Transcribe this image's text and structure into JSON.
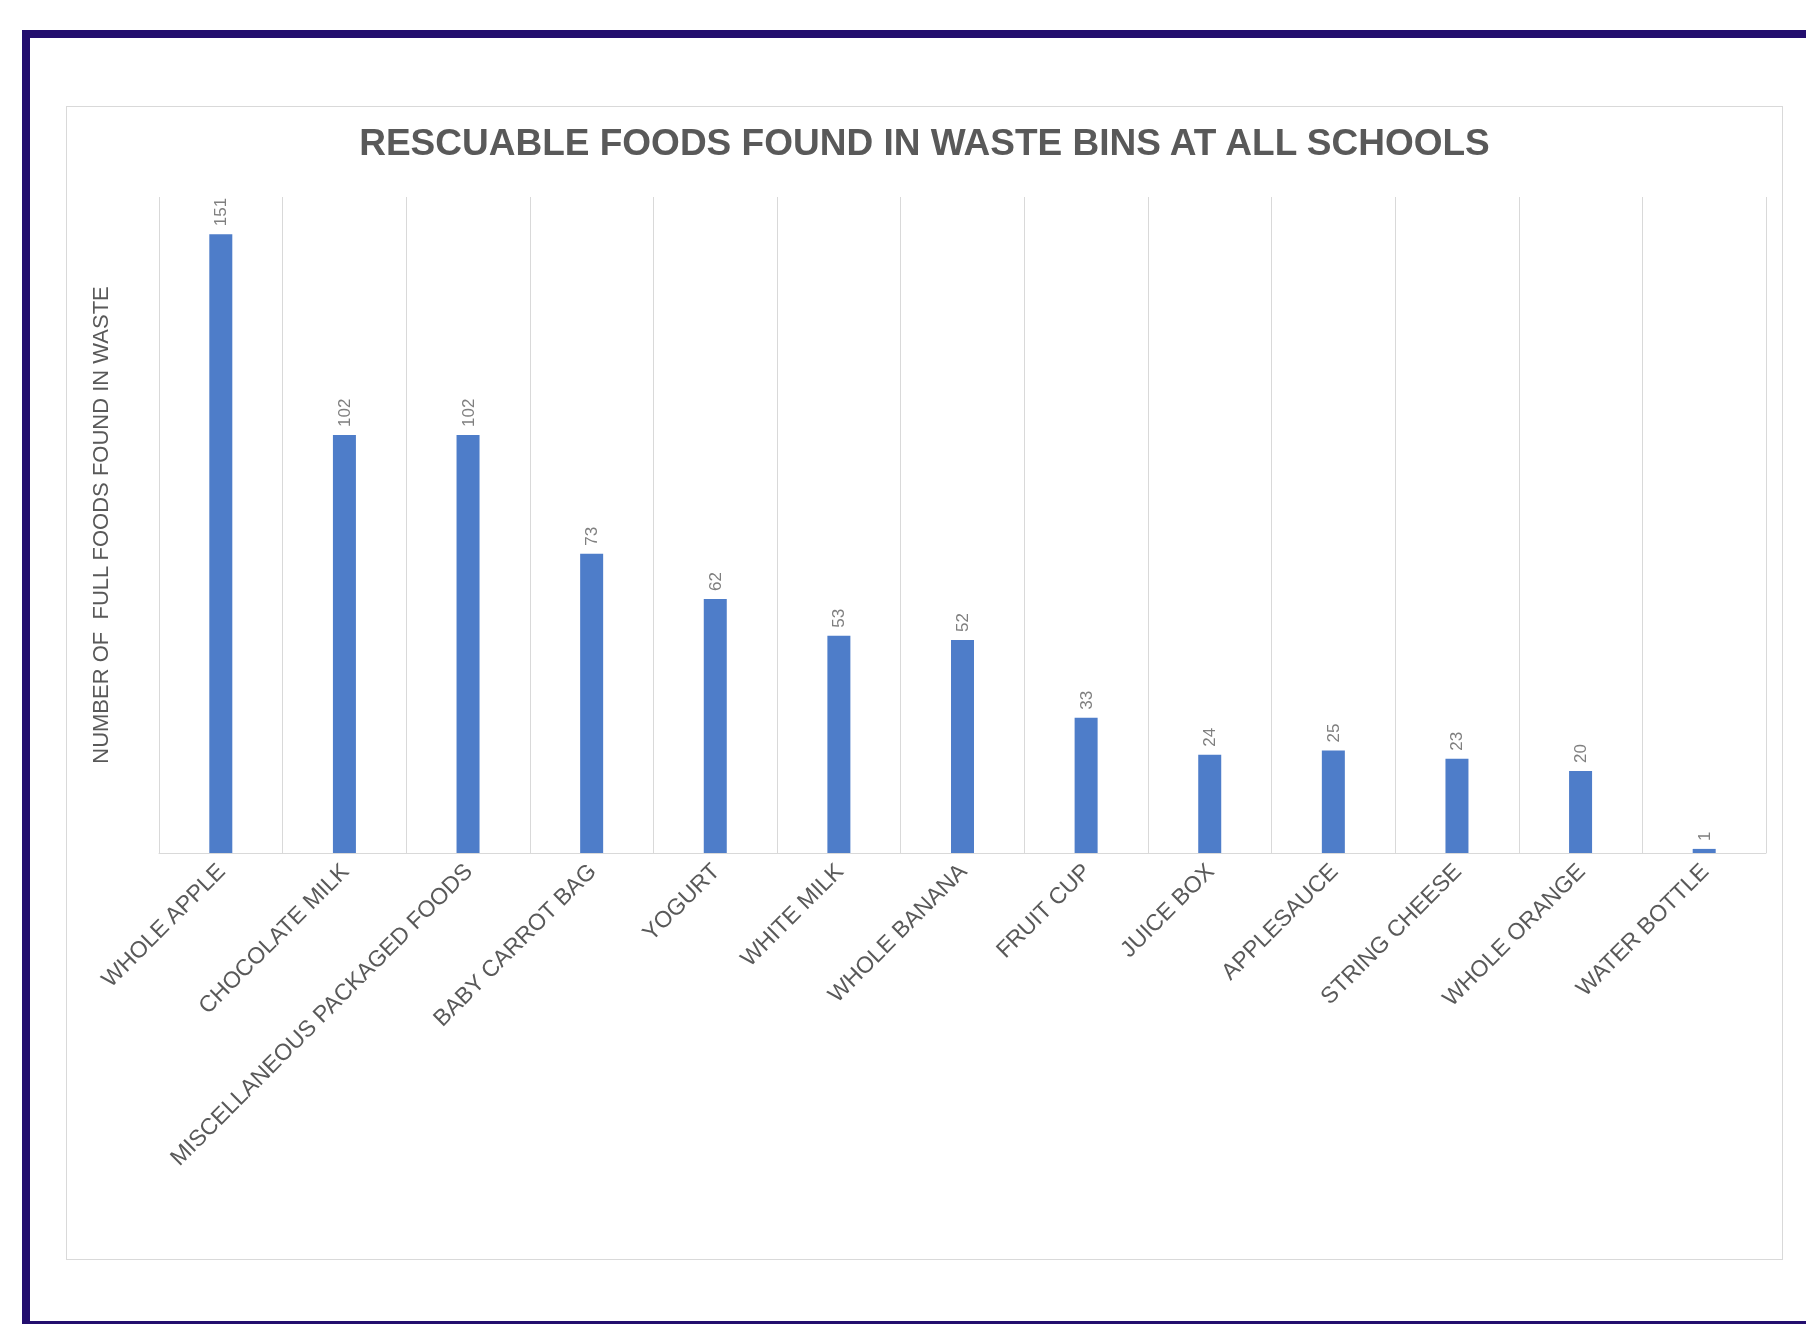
{
  "chart_data": {
    "type": "bar",
    "title": "RESCUABLE FOODS FOUND IN WASTE BINS AT ALL SCHOOLS",
    "ylabel": "NUMBER OF  FULL FOODS FOUND IN WASTE",
    "categories": [
      "WHOLE APPLE",
      "CHOCOLATE MILK",
      "MISCELLANEOUS PACKAGED FOODS",
      "BABY CARROT BAG",
      "YOGURT",
      "WHITE MILK",
      "WHOLE BANANA",
      "FRUIT CUP",
      "JUICE BOX",
      "APPLESAUCE",
      "STRING CHEESE",
      "WHOLE ORANGE",
      "WATER BOTTLE"
    ],
    "values": [
      151,
      102,
      102,
      73,
      62,
      53,
      52,
      33,
      24,
      25,
      23,
      20,
      1
    ],
    "color": "#4e7dc9",
    "data_labels": true,
    "grid": "x",
    "tick_labels": "x"
  }
}
